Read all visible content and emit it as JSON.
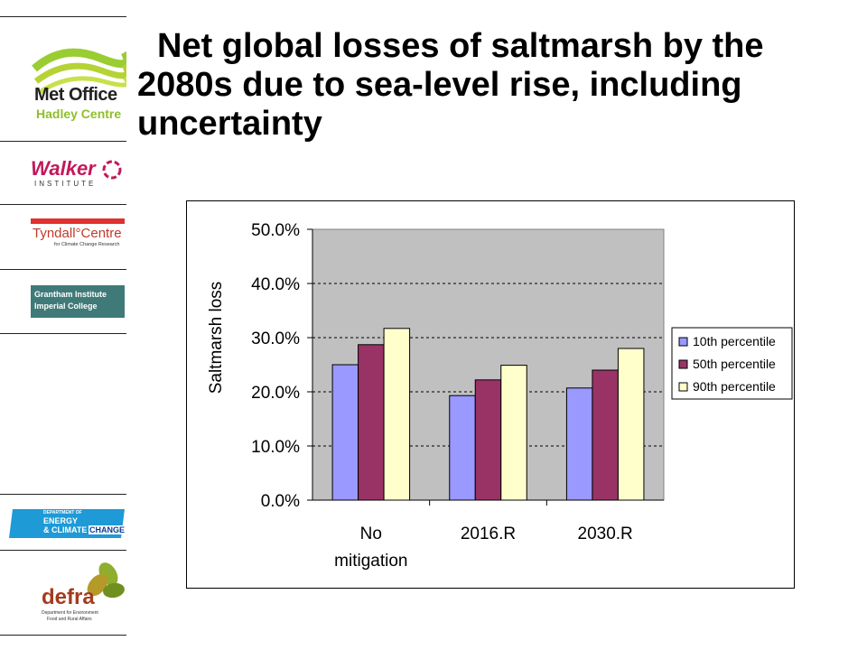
{
  "title": "Net global losses of saltmarsh by the 2080s due to sea-level rise, including uncertainty",
  "sidebar": {
    "logos": [
      {
        "name": "Met Office",
        "line1": "Met Office",
        "line2": "Hadley Centre"
      },
      {
        "name": "Walker Institute",
        "line1": "Walker",
        "line2": "INSTITUTE"
      },
      {
        "name": "Tyndall Centre",
        "line1": "Tyndall°Centre",
        "line2": "for Climate Change Research"
      },
      {
        "name": "Grantham Institute",
        "line1": "Grantham Institute",
        "line2": "Imperial College"
      },
      {
        "name": "DECC",
        "line1": "DEPARTMENT OF",
        "line2": "ENERGY",
        "line3": "& CLIMATE",
        "line4": "CHANGE"
      },
      {
        "name": "Defra",
        "line1": "defra",
        "line2": "Department for Environment",
        "line3": "Food and Rural Affairs"
      }
    ]
  },
  "chart_data": {
    "type": "bar",
    "title": "",
    "xlabel": "",
    "ylabel": "Saltmarsh loss",
    "categories": [
      [
        "No",
        "mitigation"
      ],
      [
        "2016.R"
      ],
      [
        "2030.R"
      ]
    ],
    "series": [
      {
        "name": "10th percentile",
        "color": "#9999ff",
        "values": [
          25.0,
          19.3,
          20.7
        ]
      },
      {
        "name": "50th percentile",
        "color": "#993366",
        "values": [
          28.7,
          22.2,
          24.0
        ]
      },
      {
        "name": "90th percentile",
        "color": "#ffffcc",
        "values": [
          31.7,
          24.9,
          28.0
        ]
      }
    ],
    "ylim": [
      0,
      50
    ],
    "yticks": [
      "0.0%",
      "10.0%",
      "20.0%",
      "30.0%",
      "40.0%",
      "50.0%"
    ],
    "plot_background": "#c0c0c0",
    "grid": "dashed horizontal",
    "legend_position": "right"
  }
}
